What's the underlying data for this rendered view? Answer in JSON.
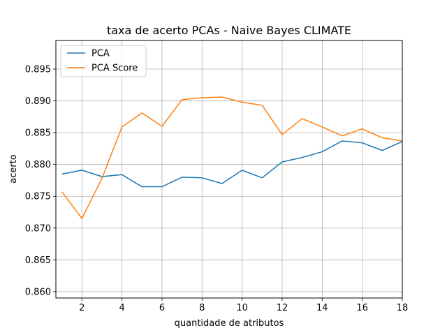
{
  "chart_data": {
    "type": "line",
    "title": "taxa de acerto PCAs - Naive Bayes CLIMATE",
    "xlabel": "quantidade de atributos",
    "ylabel": "acerto",
    "xlim": [
      0.7,
      18
    ],
    "ylim": [
      0.859,
      0.8995
    ],
    "xticks": [
      2,
      4,
      6,
      8,
      10,
      12,
      14,
      16,
      18
    ],
    "yticks": [
      0.86,
      0.865,
      0.87,
      0.875,
      0.88,
      0.885,
      0.89,
      0.895
    ],
    "grid": true,
    "legend_position": "top-left",
    "x": [
      1,
      2,
      3,
      4,
      5,
      6,
      7,
      8,
      9,
      10,
      11,
      12,
      13,
      14,
      15,
      16,
      17,
      18
    ],
    "series": [
      {
        "name": "PCA",
        "color": "#1f77b4",
        "values": [
          0.8785,
          0.8791,
          0.8781,
          0.8784,
          0.8765,
          0.8765,
          0.878,
          0.8779,
          0.877,
          0.8791,
          0.8779,
          0.8804,
          0.8811,
          0.882,
          0.8837,
          0.8834,
          0.8822,
          0.8836
        ]
      },
      {
        "name": "PCA Score",
        "color": "#ff7f0e",
        "values": [
          0.8757,
          0.8715,
          0.8778,
          0.8859,
          0.8881,
          0.886,
          0.8902,
          0.8905,
          0.8906,
          0.8898,
          0.8893,
          0.8847,
          0.8872,
          0.8859,
          0.8845,
          0.8856,
          0.8842,
          0.8837
        ]
      }
    ]
  }
}
